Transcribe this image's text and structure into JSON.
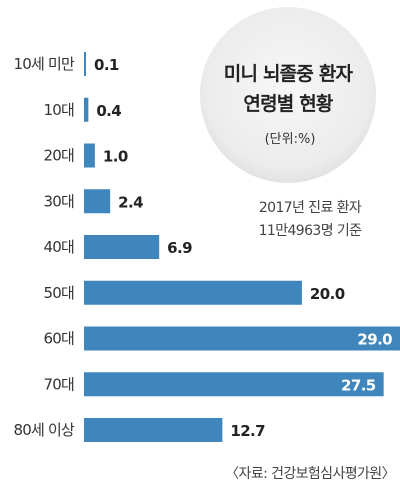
{
  "chart_data": {
    "type": "bar",
    "orientation": "horizontal",
    "title_lines": [
      "미니 뇌졸중 환자",
      "연령별 현황"
    ],
    "unit": "(단위:%)",
    "note_lines": [
      "2017년 진료 환자",
      "11만4963명 기준"
    ],
    "source": "〈자료: 건강보험심사평가원〉",
    "categories": [
      "10세 미만",
      "10대",
      "20대",
      "30대",
      "40대",
      "50대",
      "60대",
      "70대",
      "80세 이상"
    ],
    "values": [
      0.1,
      0.4,
      1.0,
      2.4,
      6.9,
      20.0,
      29.0,
      27.5,
      12.7
    ],
    "value_labels": [
      "0.1",
      "0.4",
      "1.0",
      "2.4",
      "6.9",
      "20.0",
      "29.0",
      "27.5",
      "12.7"
    ],
    "xlim": [
      0,
      29
    ],
    "grid": false,
    "legend": "none",
    "colors": {
      "bar": "#3f86bd",
      "circle": "#f0f0f0"
    }
  }
}
